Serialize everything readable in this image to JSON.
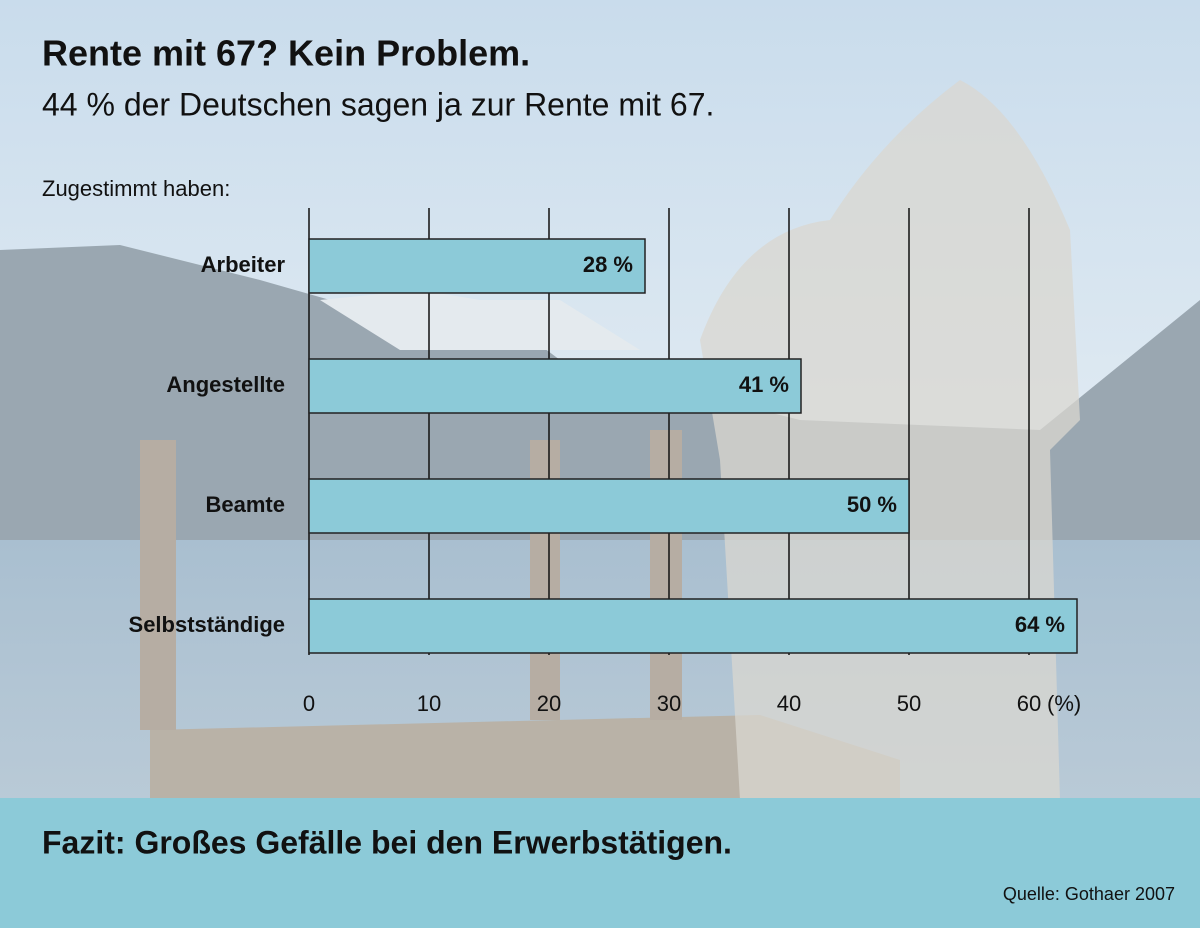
{
  "chart_data": {
    "type": "bar",
    "orientation": "horizontal",
    "title": "Rente mit 67? Kein Problem.",
    "subtitle": "44 % der Deutschen sagen ja zur Rente mit 67.",
    "ylabel": "Zugestimmt haben:",
    "xlabel": "(%)",
    "categories": [
      "Arbeiter",
      "Angestellte",
      "Beamte",
      "Selbstständige"
    ],
    "values": [
      28,
      41,
      50,
      64
    ],
    "value_labels": [
      "28 %",
      "41 %",
      "50 %",
      "64 %"
    ],
    "color": "#8ccad8",
    "xlim": [
      0,
      64
    ],
    "xticks": [
      0,
      10,
      20,
      30,
      40,
      50,
      60
    ],
    "grid": true,
    "note": "Fazit: Großes Gefälle bei den Erwerbstätigen.",
    "source": "Quelle: Gothaer 2007"
  }
}
